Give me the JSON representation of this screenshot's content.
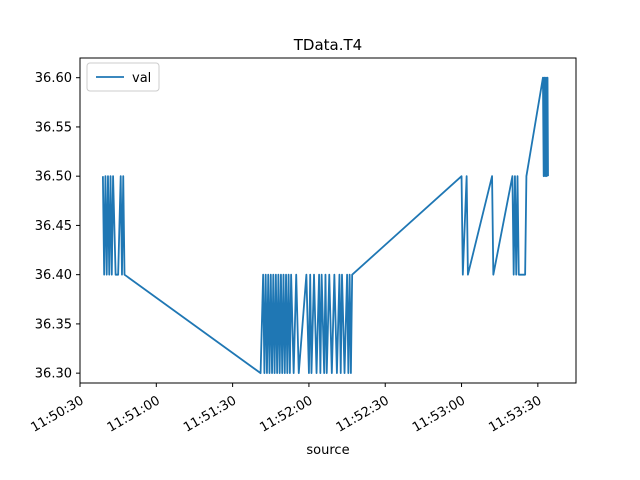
{
  "chart_data": {
    "type": "line",
    "title": "TData.T4",
    "xlabel": "source",
    "ylabel": "",
    "xlim": [
      "11:50:30",
      "11:53:45"
    ],
    "ylim": [
      36.29,
      36.62
    ],
    "x_ticks": [
      "11:50:30",
      "11:51:00",
      "11:51:30",
      "11:52:00",
      "11:52:30",
      "11:53:00",
      "11:53:30"
    ],
    "y_ticks": [
      "36.30",
      "36.35",
      "36.40",
      "36.45",
      "36.50",
      "36.55",
      "36.60"
    ],
    "grid": false,
    "legend": {
      "position": "top-left",
      "entries": [
        "val"
      ]
    },
    "color": "#1f77b4",
    "series": [
      {
        "name": "val",
        "points": [
          [
            "11:50:39",
            36.5
          ],
          [
            "11:50:39.5",
            36.4
          ],
          [
            "11:50:40",
            36.5
          ],
          [
            "11:50:40.5",
            36.4
          ],
          [
            "11:50:41",
            36.5
          ],
          [
            "11:50:41.5",
            36.4
          ],
          [
            "11:50:42",
            36.5
          ],
          [
            "11:50:42.5",
            36.4
          ],
          [
            "11:50:43",
            36.5
          ],
          [
            "11:50:44",
            36.4
          ],
          [
            "11:50:45",
            36.4
          ],
          [
            "11:50:46",
            36.5
          ],
          [
            "11:50:46.5",
            36.4
          ],
          [
            "11:50:47",
            36.5
          ],
          [
            "11:50:47.5",
            36.4
          ],
          [
            "11:51:41",
            36.3
          ],
          [
            "11:51:42",
            36.4
          ],
          [
            "11:51:42.5",
            36.3
          ],
          [
            "11:51:43",
            36.4
          ],
          [
            "11:51:43.5",
            36.3
          ],
          [
            "11:51:44",
            36.4
          ],
          [
            "11:51:44.5",
            36.3
          ],
          [
            "11:51:45",
            36.4
          ],
          [
            "11:51:45.5",
            36.3
          ],
          [
            "11:51:46",
            36.4
          ],
          [
            "11:51:46.5",
            36.3
          ],
          [
            "11:51:47",
            36.4
          ],
          [
            "11:51:47.5",
            36.3
          ],
          [
            "11:51:48",
            36.4
          ],
          [
            "11:51:48.5",
            36.3
          ],
          [
            "11:51:49",
            36.4
          ],
          [
            "11:51:49.5",
            36.3
          ],
          [
            "11:51:50",
            36.4
          ],
          [
            "11:51:50.5",
            36.3
          ],
          [
            "11:51:51",
            36.4
          ],
          [
            "11:51:51.5",
            36.3
          ],
          [
            "11:51:52",
            36.4
          ],
          [
            "11:51:52.5",
            36.3
          ],
          [
            "11:51:53",
            36.4
          ],
          [
            "11:51:54",
            36.3
          ],
          [
            "11:51:55",
            36.4
          ],
          [
            "11:51:56",
            36.3
          ],
          [
            "11:51:59",
            36.4
          ],
          [
            "11:52:00",
            36.3
          ],
          [
            "11:52:00.5",
            36.4
          ],
          [
            "11:52:01",
            36.3
          ],
          [
            "11:52:02",
            36.4
          ],
          [
            "11:52:03",
            36.3
          ],
          [
            "11:52:04",
            36.4
          ],
          [
            "11:52:04.5",
            36.3
          ],
          [
            "11:52:05",
            36.4
          ],
          [
            "11:52:06",
            36.3
          ],
          [
            "11:52:06.5",
            36.4
          ],
          [
            "11:52:07",
            36.3
          ],
          [
            "11:52:08",
            36.4
          ],
          [
            "11:52:09",
            36.3
          ],
          [
            "11:52:10",
            36.4
          ],
          [
            "11:52:11",
            36.3
          ],
          [
            "11:52:12",
            36.4
          ],
          [
            "11:52:12.5",
            36.3
          ],
          [
            "11:52:13",
            36.4
          ],
          [
            "11:52:14",
            36.3
          ],
          [
            "11:52:15",
            36.4
          ],
          [
            "11:52:15.5",
            36.3
          ],
          [
            "11:52:16",
            36.4
          ],
          [
            "11:52:16.5",
            36.3
          ],
          [
            "11:52:17",
            36.4
          ],
          [
            "11:53:00",
            36.5
          ],
          [
            "11:53:00.5",
            36.4
          ],
          [
            "11:53:02",
            36.5
          ],
          [
            "11:53:02.5",
            36.4
          ],
          [
            "11:53:12",
            36.5
          ],
          [
            "11:53:12.5",
            36.4
          ],
          [
            "11:53:20",
            36.5
          ],
          [
            "11:53:20.5",
            36.4
          ],
          [
            "11:53:21",
            36.5
          ],
          [
            "11:53:21.5",
            36.4
          ],
          [
            "11:53:22",
            36.5
          ],
          [
            "11:53:22.5",
            36.4
          ],
          [
            "11:53:25",
            36.4
          ],
          [
            "11:53:25.5",
            36.5
          ],
          [
            "11:53:32",
            36.6
          ],
          [
            "11:53:32.3",
            36.5
          ],
          [
            "11:53:32.6",
            36.6
          ],
          [
            "11:53:32.9",
            36.5
          ],
          [
            "11:53:33.2",
            36.6
          ],
          [
            "11:53:33.5",
            36.5
          ],
          [
            "11:53:33.8",
            36.6
          ],
          [
            "11:53:34",
            36.5
          ]
        ]
      }
    ]
  }
}
